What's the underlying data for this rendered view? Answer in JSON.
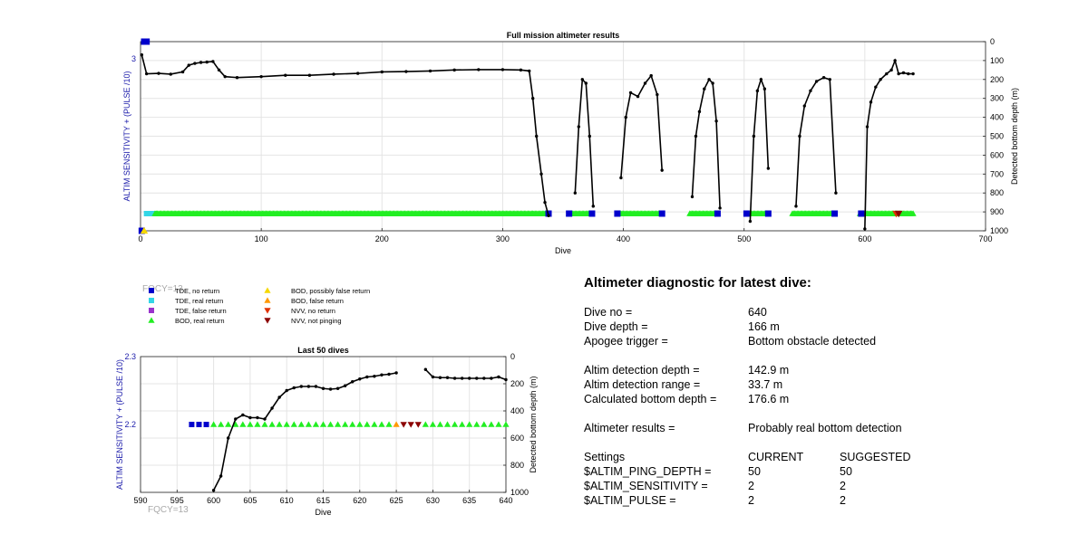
{
  "colors": {
    "tde_no_return": "#0000cc",
    "tde_real_return": "#33d6e6",
    "tde_false_return": "#9933cc",
    "bod_real_return": "#22ee22",
    "bod_possibly_false": "#f5d800",
    "bod_false_return": "#ff9900",
    "nvv_no_return": "#e03000",
    "nvv_not_pinging": "#8b0000",
    "left_axis": "#1a1aaa",
    "depth_line": "#000000",
    "fqcy_text": "#aaaaaa"
  },
  "fqcy_label": "FQCY=13",
  "legend": [
    {
      "label": "TDE, no return",
      "marker": "square",
      "color_key": "tde_no_return"
    },
    {
      "label": "TDE, real return",
      "marker": "square",
      "color_key": "tde_real_return"
    },
    {
      "label": "TDE, false return",
      "marker": "square",
      "color_key": "tde_false_return"
    },
    {
      "label": "BOD, real return",
      "marker": "triangle-up",
      "color_key": "bod_real_return"
    },
    {
      "label": "BOD, possibly false return",
      "marker": "triangle-up",
      "color_key": "bod_possibly_false"
    },
    {
      "label": "BOD, false return",
      "marker": "triangle-up",
      "color_key": "bod_false_return"
    },
    {
      "label": "NVV, no return",
      "marker": "triangle-down",
      "color_key": "nvv_no_return"
    },
    {
      "label": "NVV, not pinging",
      "marker": "triangle-down",
      "color_key": "nvv_not_pinging"
    }
  ],
  "chart_data": [
    {
      "type": "line",
      "title": "Full mission altimeter results",
      "xlabel": "Dive",
      "ylabel_left": "ALTIM SENSITIVITY + (PULSE /10)",
      "ylabel_right": "Detected bottom depth (m)",
      "xlim": [
        0,
        700
      ],
      "xticks": [
        0,
        100,
        200,
        300,
        400,
        500,
        600,
        700
      ],
      "ylim_left": [
        2.0,
        3.1
      ],
      "yticks_left": [
        3
      ],
      "ylim_right": [
        0,
        1000
      ],
      "yticks_right": [
        0,
        100,
        200,
        300,
        400,
        500,
        600,
        700,
        800,
        900,
        1000
      ],
      "grid": true,
      "depth_segments": [
        {
          "x": [
            1,
            5,
            15,
            25,
            35,
            40,
            45,
            50,
            55,
            60,
            65,
            70,
            80,
            100,
            120,
            140,
            160,
            180,
            200,
            220,
            240,
            260,
            280,
            300,
            315,
            322,
            325,
            328,
            332,
            335,
            338
          ],
          "y": [
            70,
            170,
            168,
            172,
            160,
            125,
            115,
            110,
            108,
            105,
            150,
            185,
            190,
            185,
            178,
            178,
            172,
            168,
            160,
            158,
            155,
            150,
            148,
            148,
            150,
            155,
            300,
            500,
            700,
            850,
            920
          ]
        },
        {
          "x": [
            360,
            363,
            366,
            369,
            372,
            375
          ],
          "y": [
            800,
            450,
            200,
            220,
            500,
            870
          ]
        },
        {
          "x": [
            398,
            402,
            406,
            412,
            418,
            423,
            428,
            432
          ],
          "y": [
            720,
            400,
            270,
            290,
            220,
            180,
            280,
            680
          ]
        },
        {
          "x": [
            457,
            460,
            463,
            467,
            471,
            474,
            477,
            480
          ],
          "y": [
            820,
            500,
            370,
            250,
            200,
            220,
            420,
            880
          ]
        },
        {
          "x": [
            505,
            508,
            511,
            514,
            517,
            520
          ],
          "y": [
            950,
            500,
            260,
            200,
            250,
            670
          ]
        },
        {
          "x": [
            543,
            546,
            550,
            555,
            560,
            566,
            571,
            576
          ],
          "y": [
            870,
            500,
            340,
            260,
            210,
            190,
            200,
            800
          ]
        },
        {
          "x": [
            600,
            602,
            605,
            609,
            613,
            618,
            622,
            625,
            628,
            632,
            636,
            640
          ],
          "y": [
            990,
            450,
            320,
            240,
            200,
            170,
            150,
            100,
            170,
            165,
            170,
            170
          ]
        }
      ],
      "marker_bands": [
        {
          "from": 5,
          "to": 12,
          "color_key": "tde_real_return",
          "marker": "square"
        },
        {
          "from": 12,
          "to": 325,
          "color_key": "bod_real_return",
          "marker": "triangle-up"
        },
        {
          "from": 325,
          "to": 335,
          "color_key": "bod_real_return",
          "marker": "triangle-up"
        },
        {
          "from": 355,
          "to": 372,
          "color_key": "bod_real_return",
          "marker": "triangle-up"
        },
        {
          "from": 395,
          "to": 430,
          "color_key": "bod_real_return",
          "marker": "triangle-up"
        },
        {
          "from": 455,
          "to": 478,
          "color_key": "bod_real_return",
          "marker": "triangle-up"
        },
        {
          "from": 505,
          "to": 518,
          "color_key": "bod_real_return",
          "marker": "triangle-up"
        },
        {
          "from": 540,
          "to": 572,
          "color_key": "bod_real_return",
          "marker": "triangle-up"
        },
        {
          "from": 596,
          "to": 640,
          "color_key": "bod_real_return",
          "marker": "triangle-up"
        }
      ],
      "points": [
        {
          "x": 3,
          "y": 3.1,
          "color_key": "tde_no_return",
          "marker": "square"
        },
        {
          "x": 5,
          "y": 3.1,
          "color_key": "tde_no_return",
          "marker": "square"
        },
        {
          "x": 1,
          "y": 2.0,
          "color_key": "tde_no_return",
          "marker": "square"
        },
        {
          "x": 3,
          "y": 2.0,
          "color_key": "bod_possibly_false",
          "marker": "triangle-up"
        },
        {
          "x": 338,
          "y": 2.1,
          "color_key": "tde_no_return",
          "marker": "square"
        },
        {
          "x": 355,
          "y": 2.1,
          "color_key": "tde_no_return",
          "marker": "square"
        },
        {
          "x": 374,
          "y": 2.1,
          "color_key": "tde_no_return",
          "marker": "square"
        },
        {
          "x": 395,
          "y": 2.1,
          "color_key": "tde_no_return",
          "marker": "square"
        },
        {
          "x": 432,
          "y": 2.1,
          "color_key": "tde_no_return",
          "marker": "square"
        },
        {
          "x": 478,
          "y": 2.1,
          "color_key": "tde_no_return",
          "marker": "square"
        },
        {
          "x": 502,
          "y": 2.1,
          "color_key": "tde_no_return",
          "marker": "square"
        },
        {
          "x": 520,
          "y": 2.1,
          "color_key": "tde_no_return",
          "marker": "square"
        },
        {
          "x": 575,
          "y": 2.1,
          "color_key": "tde_no_return",
          "marker": "square"
        },
        {
          "x": 597,
          "y": 2.1,
          "color_key": "tde_no_return",
          "marker": "square"
        },
        {
          "x": 626,
          "y": 2.1,
          "color_key": "nvv_no_return",
          "marker": "triangle-down"
        },
        {
          "x": 628,
          "y": 2.1,
          "color_key": "nvv_not_pinging",
          "marker": "triangle-down"
        }
      ]
    },
    {
      "type": "line",
      "title": "Last 50 dives",
      "xlabel": "Dive",
      "ylabel_left": "ALTIM SENSITIVITY + (PULSE /10)",
      "ylabel_right": "Detected bottom depth (m)",
      "xlim": [
        590,
        640
      ],
      "xticks": [
        590,
        595,
        600,
        605,
        610,
        615,
        620,
        625,
        630,
        635,
        640
      ],
      "ylim_left": [
        2.1,
        2.3
      ],
      "yticks_left": [
        2.2,
        2.3
      ],
      "ylim_right": [
        0,
        1000
      ],
      "yticks_right": [
        0,
        200,
        400,
        600,
        800,
        1000
      ],
      "grid": true,
      "depth_segments": [
        {
          "x": [
            600,
            601,
            602,
            603,
            604,
            605,
            606,
            607,
            608,
            609,
            610,
            611,
            612,
            613,
            614,
            615,
            616,
            617,
            618,
            619,
            620,
            621,
            622,
            623,
            624,
            625
          ],
          "y": [
            985,
            880,
            600,
            460,
            430,
            450,
            450,
            460,
            380,
            300,
            250,
            230,
            220,
            220,
            220,
            235,
            240,
            235,
            215,
            185,
            165,
            150,
            145,
            135,
            130,
            120
          ]
        },
        {
          "x": [
            629,
            630,
            631,
            632,
            633,
            634,
            635,
            636,
            637,
            638,
            639,
            640
          ],
          "y": [
            95,
            150,
            155,
            155,
            160,
            160,
            160,
            160,
            160,
            160,
            150,
            170
          ]
        }
      ],
      "markers": [
        {
          "x": [
            597,
            598,
            599
          ],
          "y": 2.2,
          "color_key": "tde_no_return",
          "marker": "square"
        },
        {
          "x": [
            600,
            601,
            602,
            603,
            604,
            605,
            606,
            607,
            608,
            609,
            610,
            611,
            612,
            613,
            614,
            615,
            616,
            617,
            618,
            619,
            620,
            621,
            622,
            623,
            624
          ],
          "y": 2.2,
          "color_key": "bod_real_return",
          "marker": "triangle-up"
        },
        {
          "x": [
            625
          ],
          "y": 2.2,
          "color_key": "bod_false_return",
          "marker": "triangle-up"
        },
        {
          "x": [
            626,
            627,
            628
          ],
          "y": 2.2,
          "color_key": "nvv_not_pinging",
          "marker": "triangle-down"
        },
        {
          "x": [
            629,
            630,
            631,
            632,
            633,
            634,
            635,
            636,
            637,
            638,
            639,
            640
          ],
          "y": 2.2,
          "color_key": "bod_real_return",
          "marker": "triangle-up"
        }
      ]
    }
  ],
  "diagnostic": {
    "title": "Altimeter diagnostic for latest dive:",
    "dive_no_label": "Dive no =",
    "dive_no_value": "640",
    "dive_depth_label": "Dive depth =",
    "dive_depth_value": "166 m",
    "apogee_label": "Apogee trigger =",
    "apogee_value": "Bottom obstacle detected",
    "altim_depth_label": "Altim detection depth =",
    "altim_depth_value": "142.9 m",
    "altim_range_label": "Altim detection range =",
    "altim_range_value": "33.7 m",
    "calc_depth_label": "Calculated bottom depth =",
    "calc_depth_value": "176.6 m",
    "results_label": "Altimeter results =",
    "results_value": "Probably real bottom detection",
    "settings_label": "Settings",
    "current_label": "CURRENT",
    "suggested_label": "SUGGESTED",
    "settings": [
      {
        "name": "$ALTIM_PING_DEPTH =",
        "current": "50",
        "suggested": "50"
      },
      {
        "name": "$ALTIM_SENSITIVITY =",
        "current": "2",
        "suggested": "2"
      },
      {
        "name": "$ALTIM_PULSE =",
        "current": "2",
        "suggested": "2"
      }
    ]
  }
}
